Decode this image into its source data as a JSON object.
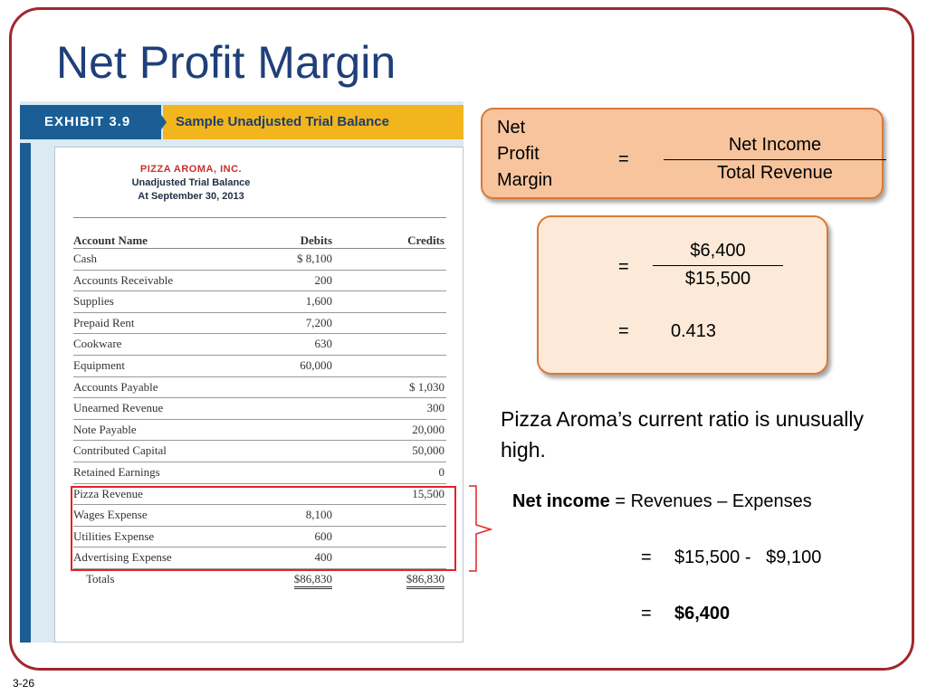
{
  "slide": {
    "title": "Net Profit Margin",
    "number": "3-26"
  },
  "exhibit": {
    "tag": "EXHIBIT 3.9",
    "caption": "Sample Unadjusted Trial Balance",
    "company": "PIZZA AROMA, INC.",
    "report_name": "Unadjusted Trial Balance",
    "date_line": "At September 30, 2013",
    "headers": {
      "account": "Account Name",
      "debits": "Debits",
      "credits": "Credits"
    },
    "rows": [
      {
        "account": "Cash",
        "debit": "$  8,100",
        "credit": ""
      },
      {
        "account": "Accounts Receivable",
        "debit": "200",
        "credit": ""
      },
      {
        "account": "Supplies",
        "debit": "1,600",
        "credit": ""
      },
      {
        "account": "Prepaid Rent",
        "debit": "7,200",
        "credit": ""
      },
      {
        "account": "Cookware",
        "debit": "630",
        "credit": ""
      },
      {
        "account": "Equipment",
        "debit": "60,000",
        "credit": ""
      },
      {
        "account": "Accounts Payable",
        "debit": "",
        "credit": "$  1,030"
      },
      {
        "account": "Unearned Revenue",
        "debit": "",
        "credit": "300"
      },
      {
        "account": "Note Payable",
        "debit": "",
        "credit": "20,000"
      },
      {
        "account": "Contributed Capital",
        "debit": "",
        "credit": "50,000"
      },
      {
        "account": "Retained Earnings",
        "debit": "",
        "credit": "0"
      },
      {
        "account": "Pizza Revenue",
        "debit": "",
        "credit": "15,500"
      },
      {
        "account": "Wages Expense",
        "debit": "8,100",
        "credit": ""
      },
      {
        "account": "Utilities Expense",
        "debit": "600",
        "credit": ""
      },
      {
        "account": "Advertising Expense",
        "debit": "400",
        "credit": ""
      }
    ],
    "totals": {
      "label": "Totals",
      "debit": "$86,830",
      "credit": "$86,830"
    }
  },
  "formula": {
    "label_line1": "Net",
    "label_line2": "Profit",
    "label_line3": "Margin",
    "equals": "=",
    "numerator": "Net Income",
    "denominator": "Total Revenue"
  },
  "calculation": {
    "equals": "=",
    "numerator": "$6,400",
    "denominator": "$15,500",
    "result": "0.413"
  },
  "comment": "Pizza Aroma’s current ratio is unusually high.",
  "net_income": {
    "label": "Net income",
    "formula": " = Revenues – Expenses",
    "equals": "=",
    "step2": "$15,500 -   $9,100",
    "step3": "$6,400"
  },
  "colors": {
    "frame": "#a0282d",
    "title": "#1f3f7a",
    "exhibit_blue": "#1b5e96",
    "exhibit_gold": "#f3b51d",
    "highlight": "#e2222a",
    "box_fill_dark": "#f7c49d",
    "box_fill_light": "#fce9d7",
    "box_border": "#d97a36"
  }
}
